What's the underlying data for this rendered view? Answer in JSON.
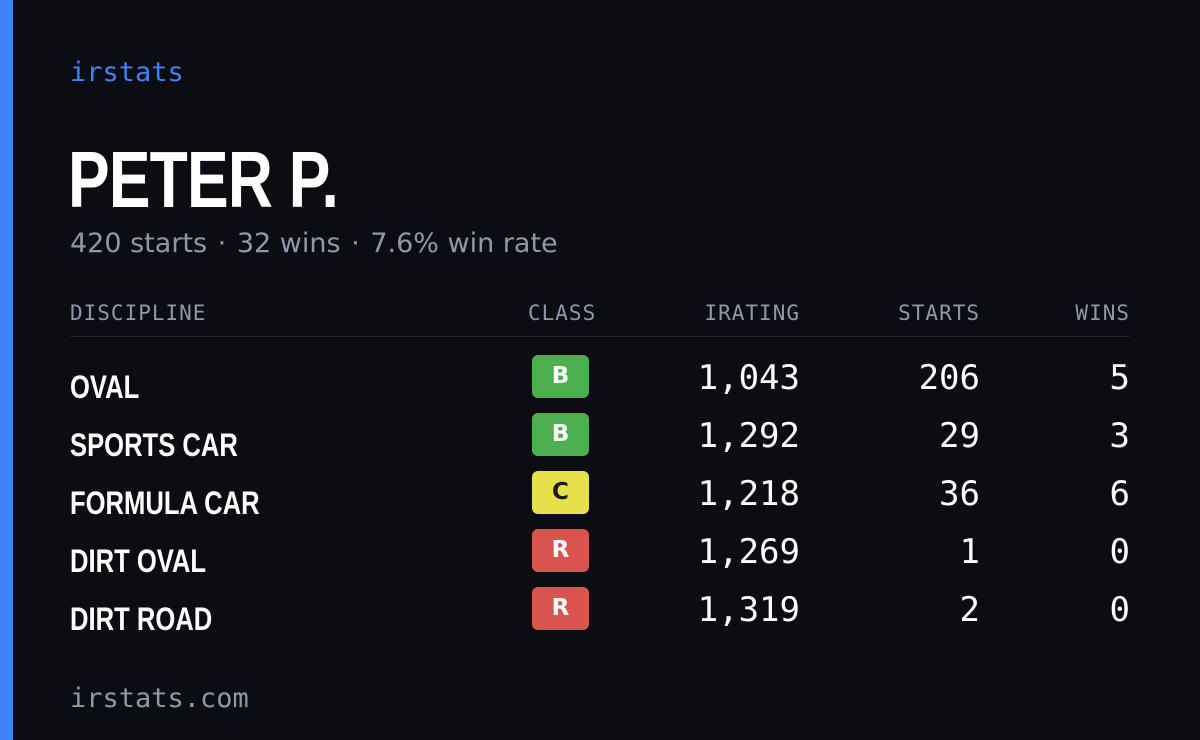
{
  "brand": "irstats",
  "player": {
    "name": "PETER P.",
    "summary_starts": "420 starts",
    "summary_wins": "32 wins",
    "summary_winrate": "7.6% win rate",
    "separator": "·"
  },
  "table": {
    "headers": {
      "discipline": "DISCIPLINE",
      "class": "CLASS",
      "irating": "IRATING",
      "starts": "STARTS",
      "wins": "WINS"
    },
    "rows": [
      {
        "discipline": "OVAL",
        "class": "B",
        "class_color": "#4caf50",
        "irating": "1,043",
        "starts": "206",
        "wins": "5"
      },
      {
        "discipline": "SPORTS CAR",
        "class": "B",
        "class_color": "#4caf50",
        "irating": "1,292",
        "starts": "29",
        "wins": "3"
      },
      {
        "discipline": "FORMULA CAR",
        "class": "C",
        "class_color": "#e8e04a",
        "irating": "1,218",
        "starts": "36",
        "wins": "6"
      },
      {
        "discipline": "DIRT OVAL",
        "class": "R",
        "class_color": "#d9534f",
        "irating": "1,269",
        "starts": "1",
        "wins": "0"
      },
      {
        "discipline": "DIRT ROAD",
        "class": "R",
        "class_color": "#d9534f",
        "irating": "1,319",
        "starts": "2",
        "wins": "0"
      }
    ]
  },
  "footer": "irstats.com",
  "colors": {
    "accent": "#3d82f6",
    "background": "#0b0d13",
    "muted": "#8f98ab"
  }
}
